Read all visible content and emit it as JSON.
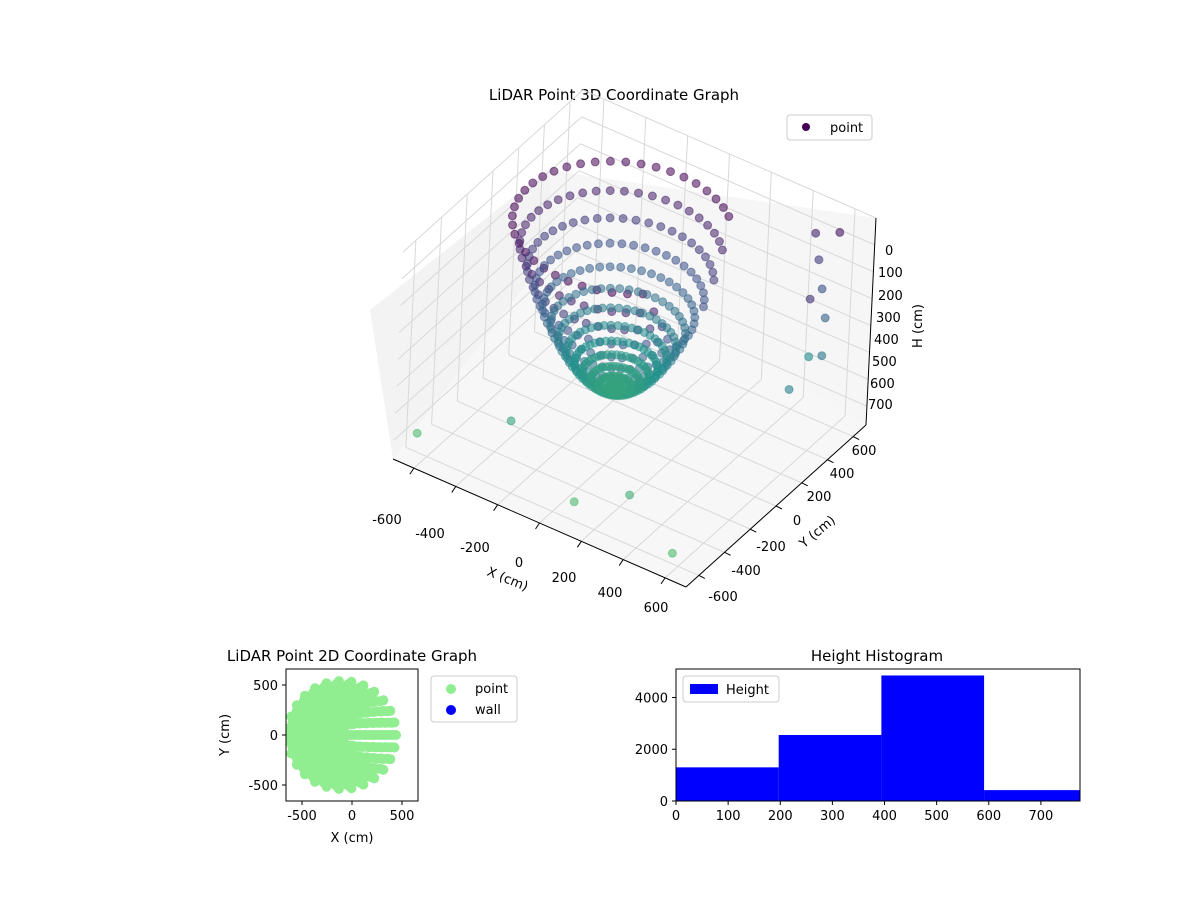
{
  "chart_data": [
    {
      "type": "scatter",
      "projection": "3d",
      "title": "LiDAR Point 3D Coordinate Graph",
      "xlabel": "X (cm)",
      "ylabel": "Y (cm)",
      "zlabel": "H (cm)",
      "xlim": [
        -700,
        700
      ],
      "ylim": [
        -700,
        700
      ],
      "zlim": [
        770,
        0
      ],
      "x_ticks": [
        "-600",
        "-400",
        "-200",
        "0",
        "200",
        "400",
        "600"
      ],
      "y_ticks": [
        "-600",
        "-400",
        "-200",
        "0",
        "200",
        "400",
        "600"
      ],
      "z_ticks": [
        "0",
        "100",
        "200",
        "300",
        "400",
        "500",
        "600",
        "700"
      ],
      "legend": {
        "placement": "upper right",
        "entries": [
          {
            "name": "point",
            "color": "#440154"
          }
        ]
      },
      "colormap": "viridis",
      "grid": true,
      "series": [
        {
          "name": "point",
          "shape": "bowl (points on a ring of radius ~450 cm, height 0 at rim to ~600 cm at center)",
          "sample_points": [
            {
              "x": -450,
              "y": 0,
              "h": 0
            },
            {
              "x": 0,
              "y": 450,
              "h": 0
            },
            {
              "x": 0,
              "y": -450,
              "h": 0
            },
            {
              "x": -300,
              "y": 0,
              "h": 300
            },
            {
              "x": 0,
              "y": 0,
              "h": 600
            },
            {
              "x": 550,
              "y": 550,
              "h": 250
            },
            {
              "x": 600,
              "y": -650,
              "h": 700
            },
            {
              "x": -650,
              "y": -600,
              "h": 700
            }
          ]
        }
      ]
    },
    {
      "type": "scatter",
      "title": "LiDAR Point 2D Coordinate Graph",
      "xlabel": "X (cm)",
      "ylabel": "Y (cm)",
      "xlim": [
        -660,
        660
      ],
      "ylim": [
        -660,
        660
      ],
      "x_ticks": [
        "-500",
        "0",
        "500"
      ],
      "y_ticks": [
        "500",
        "0",
        "-500"
      ],
      "legend": {
        "placement": "outside right",
        "entries": [
          {
            "name": "point",
            "color": "#90ee90"
          },
          {
            "name": "wall",
            "color": "#0000ff"
          }
        ]
      },
      "series": [
        {
          "name": "point",
          "color": "#90ee90",
          "shape": "filled disc of radius ~550 cm centered near x=-100, y=0"
        },
        {
          "name": "wall",
          "color": "#0000ff",
          "values": []
        }
      ]
    },
    {
      "type": "bar",
      "title": "Height Histogram",
      "xlabel": "",
      "ylabel": "",
      "xlim": [
        0,
        775
      ],
      "ylim": [
        0,
        5100
      ],
      "x_ticks": [
        "0",
        "100",
        "200",
        "300",
        "400",
        "500",
        "600",
        "700"
      ],
      "y_ticks": [
        "0",
        "2000",
        "4000"
      ],
      "legend": {
        "placement": "upper left",
        "entries": [
          {
            "name": "Height",
            "color": "#0000ff"
          }
        ]
      },
      "bins": [
        {
          "start": 0,
          "end": 197,
          "count": 1300
        },
        {
          "start": 197,
          "end": 394,
          "count": 2550
        },
        {
          "start": 394,
          "end": 591,
          "count": 4850
        },
        {
          "start": 591,
          "end": 775,
          "count": 420
        }
      ],
      "color": "#0000ff"
    }
  ]
}
